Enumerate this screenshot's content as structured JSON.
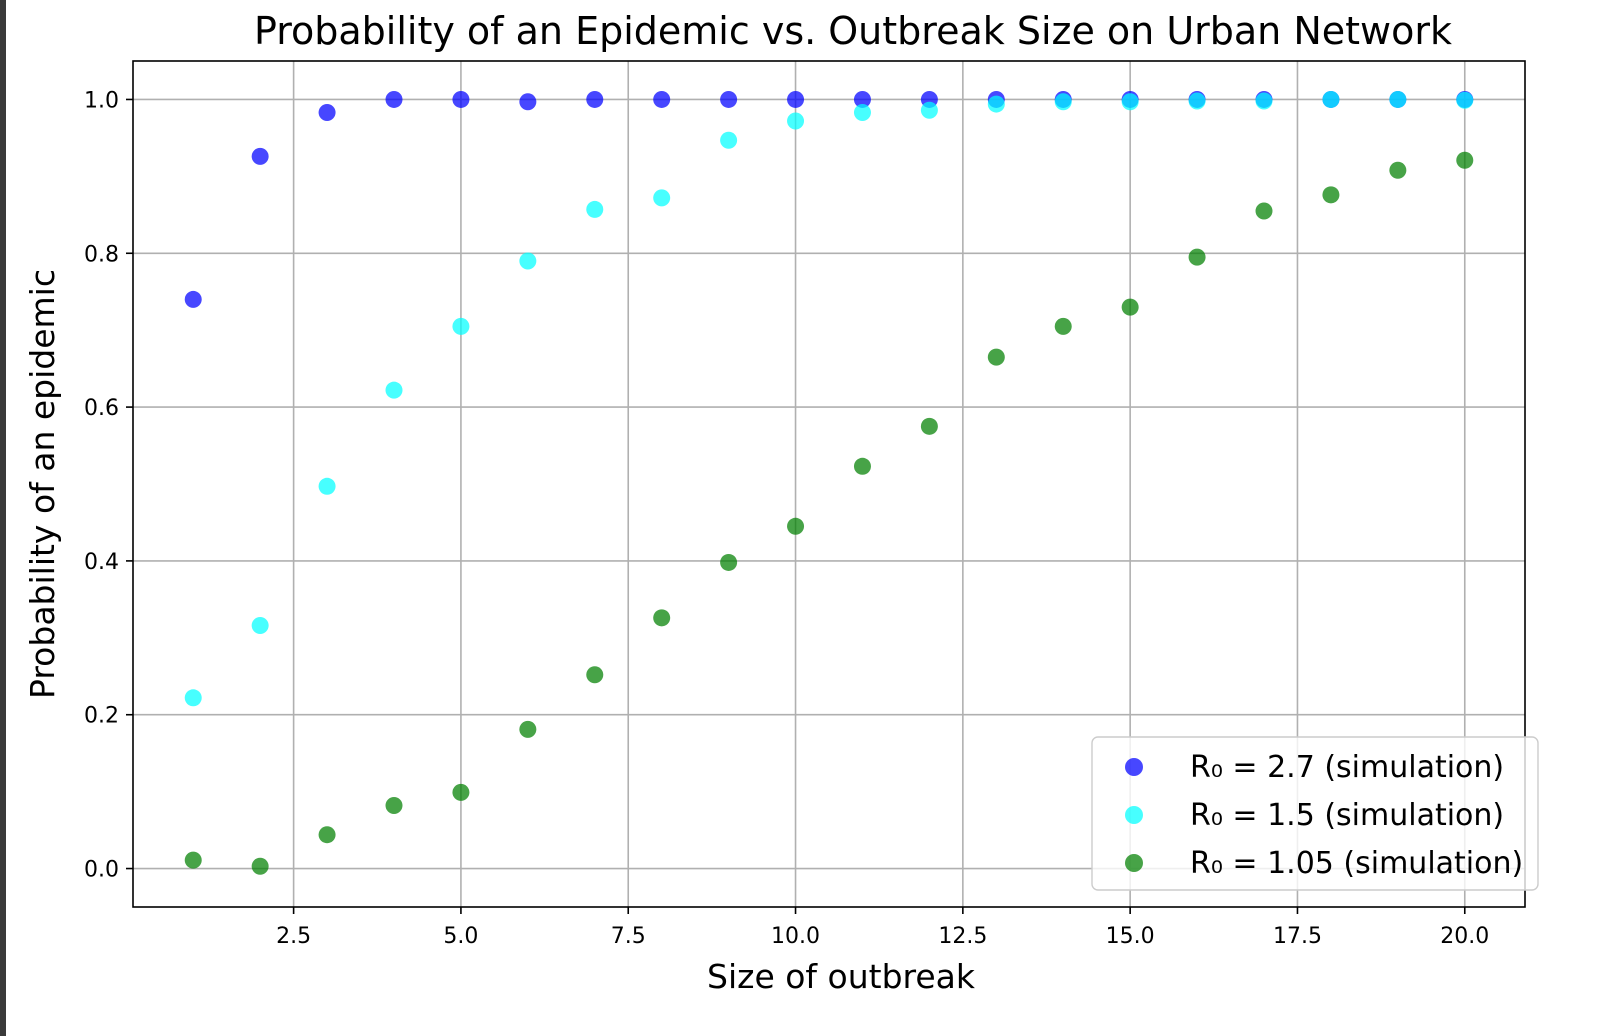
{
  "chart_data": {
    "type": "scatter",
    "title": "Probability of an Epidemic vs. Outbreak Size on Urban Network",
    "xlabel": "Size of outbreak",
    "ylabel": "Probability of an epidemic",
    "xlim": [
      0.1,
      20.9
    ],
    "ylim": [
      -0.05,
      1.05
    ],
    "xticks": [
      2.5,
      5.0,
      7.5,
      10.0,
      12.5,
      15.0,
      17.5,
      20.0
    ],
    "xtick_labels": [
      "2.5",
      "5.0",
      "7.5",
      "10.0",
      "12.5",
      "15.0",
      "17.5",
      "20.0"
    ],
    "yticks": [
      0.0,
      0.2,
      0.4,
      0.6,
      0.8,
      1.0
    ],
    "ytick_labels": [
      "0.0",
      "0.2",
      "0.4",
      "0.6",
      "0.8",
      "1.0"
    ],
    "grid": true,
    "legend_position": "lower-right",
    "x": [
      1,
      2,
      3,
      4,
      5,
      6,
      7,
      8,
      9,
      10,
      11,
      12,
      13,
      14,
      15,
      16,
      17,
      18,
      19,
      20
    ],
    "series": [
      {
        "name": "R₀ = 2.7 (simulation)",
        "color": "#0000ff",
        "values": [
          0.74,
          0.926,
          0.983,
          1.0,
          1.0,
          0.997,
          1.0,
          1.0,
          1.0,
          1.0,
          1.0,
          1.0,
          1.0,
          1.0,
          1.0,
          1.0,
          1.0,
          1.0,
          1.0,
          1.0
        ]
      },
      {
        "name": "R₀ = 1.5 (simulation)",
        "color": "#00ffff",
        "values": [
          0.222,
          0.316,
          0.497,
          0.622,
          0.705,
          0.79,
          0.857,
          0.872,
          0.947,
          0.972,
          0.983,
          0.986,
          0.994,
          0.997,
          0.997,
          0.998,
          0.998,
          1.0,
          1.0,
          0.999
        ]
      },
      {
        "name": "R₀ = 1.05 (simulation)",
        "color": "#008000",
        "values": [
          0.011,
          0.003,
          0.044,
          0.082,
          0.099,
          0.181,
          0.252,
          0.326,
          0.398,
          0.445,
          0.523,
          0.575,
          0.665,
          0.705,
          0.73,
          0.795,
          0.855,
          0.876,
          0.908,
          0.921
        ]
      }
    ]
  }
}
